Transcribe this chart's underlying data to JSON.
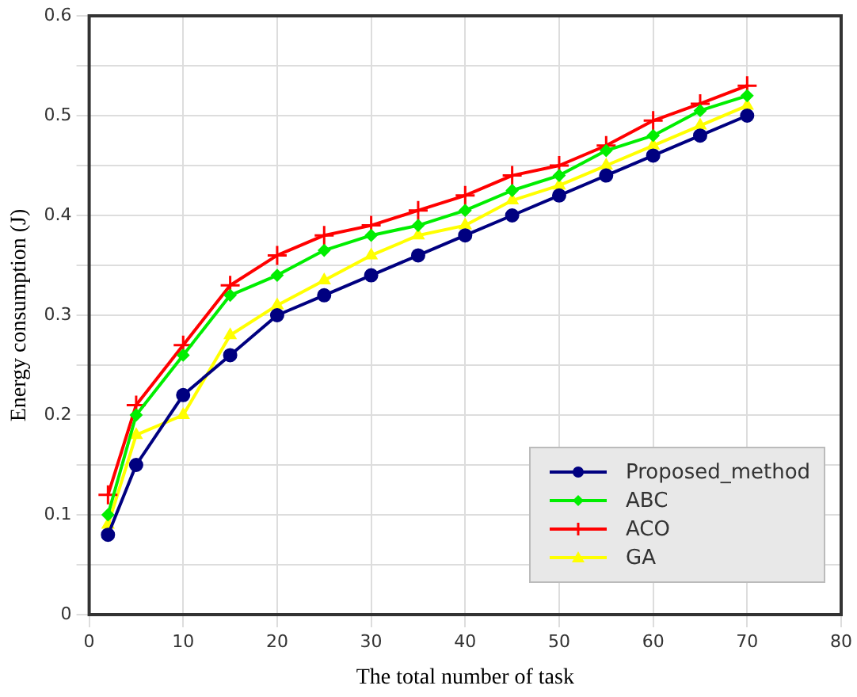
{
  "chart_data": {
    "type": "line",
    "xlabel": "The total number of task",
    "ylabel": "Energy consumption (J)",
    "x": [
      2,
      5,
      10,
      15,
      20,
      25,
      30,
      35,
      40,
      45,
      50,
      55,
      60,
      65,
      70
    ],
    "series": [
      {
        "name": "Proposed_method",
        "color": "#000080",
        "marker": "circle",
        "values": [
          0.08,
          0.15,
          0.22,
          0.26,
          0.3,
          0.32,
          0.34,
          0.36,
          0.38,
          0.4,
          0.42,
          0.44,
          0.46,
          0.48,
          0.5
        ]
      },
      {
        "name": "ABC",
        "color": "#00ee00",
        "marker": "diamond",
        "values": [
          0.1,
          0.2,
          0.26,
          0.32,
          0.34,
          0.365,
          0.38,
          0.39,
          0.405,
          0.425,
          0.44,
          0.465,
          0.48,
          0.505,
          0.52
        ]
      },
      {
        "name": "ACO",
        "color": "#ff0000",
        "marker": "cross",
        "values": [
          0.12,
          0.21,
          0.27,
          0.33,
          0.36,
          0.38,
          0.39,
          0.405,
          0.42,
          0.44,
          0.45,
          0.47,
          0.495,
          0.512,
          0.53
        ]
      },
      {
        "name": "GA",
        "color": "#ffff00",
        "marker": "triangle",
        "values": [
          0.09,
          0.18,
          0.2,
          0.28,
          0.31,
          0.335,
          0.36,
          0.38,
          0.39,
          0.415,
          0.43,
          0.45,
          0.47,
          0.49,
          0.51
        ]
      }
    ],
    "xlim": [
      0,
      80
    ],
    "xticks": [
      0,
      10,
      20,
      30,
      40,
      50,
      60,
      70,
      80
    ],
    "ylim": [
      0,
      0.6
    ],
    "yticks": [
      0,
      {
        "value": 0.05,
        "label": null
      },
      0.1,
      {
        "value": 0.15,
        "label": null
      },
      0.2,
      {
        "value": 0.25,
        "label": null
      },
      0.3,
      {
        "value": 0.35,
        "label": null
      },
      0.4,
      {
        "value": 0.45,
        "label": null
      },
      0.5,
      {
        "value": 0.55,
        "label": null
      },
      0.6
    ],
    "grid": true,
    "legend": "bottom right",
    "line_style": "solid"
  }
}
